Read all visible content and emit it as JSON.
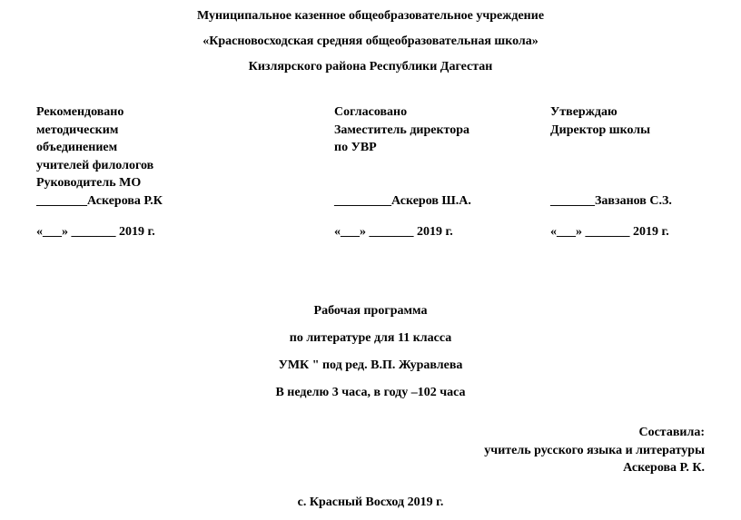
{
  "header": {
    "line1": "Муниципальное казенное общеобразовательное учреждение",
    "line2": "«Красновосходская средняя общеобразовательная школа»",
    "line3": "Кизлярского района Республики Дагестан"
  },
  "approval": {
    "left": {
      "l1": "Рекомендовано",
      "l2": " методическим",
      "l3": "объединением",
      "l4": "учителей филологов",
      "l5": "Руководитель МО",
      "sig": "________Аскерова Р.К",
      "date": " «___» _______ 2019 г."
    },
    "mid": {
      "l1": "Согласовано",
      "l2": "Заместитель директора",
      "l3": "по УВР",
      "sig": "_________Аскеров Ш.А.",
      "date": "  «___» _______ 2019 г."
    },
    "right": {
      "l1": "Утверждаю",
      "l2": "Директор школы",
      "sig": " _______Завзанов С.З.",
      "date": "  «___» _______ 2019 г."
    }
  },
  "program": {
    "l1": "Рабочая программа",
    "l2": "по литературе для 11 класса",
    "l3": "УМК \" под ред. В.П. Журавлева",
    "l4": "В неделю 3 часа, в году –102 часа"
  },
  "author": {
    "l1": "Составила:",
    "l2": "учитель русского языка и литературы",
    "l3": "Аскерова Р. К."
  },
  "footer": "с. Красный Восход 2019 г."
}
